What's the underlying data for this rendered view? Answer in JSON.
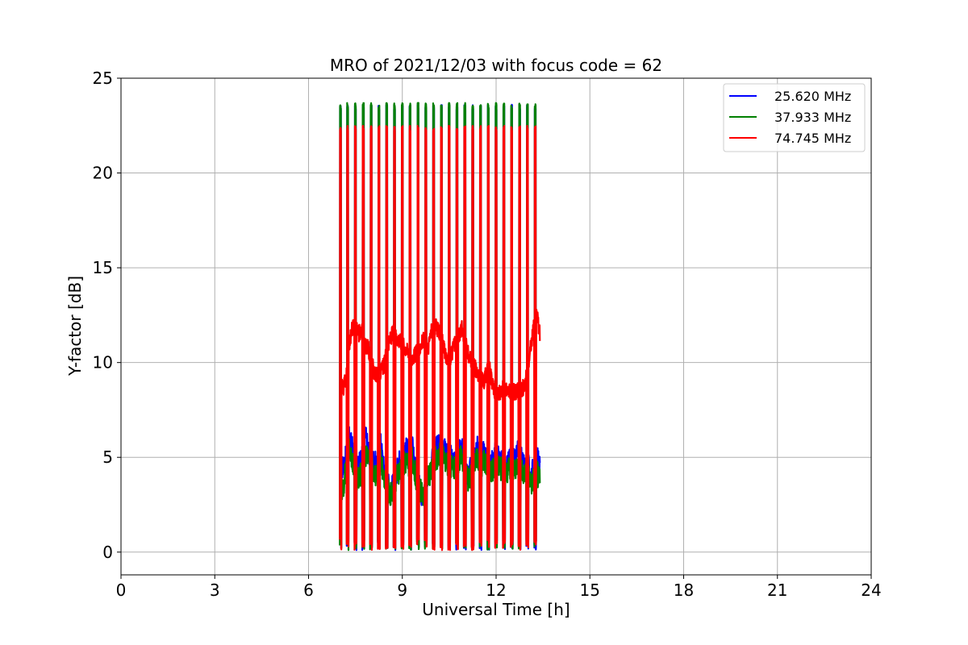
{
  "chart_data": {
    "type": "line",
    "title": "MRO of 2021/12/03 with focus code = 62",
    "xlabel": "Universal Time [h]",
    "ylabel": "Y-factor [dB]",
    "xlim": [
      0,
      24
    ],
    "ylim": [
      -1.2,
      25
    ],
    "xticks": [
      0,
      3,
      6,
      9,
      12,
      15,
      18,
      21,
      24
    ],
    "yticks": [
      0,
      5,
      10,
      15,
      20,
      25
    ],
    "grid": true,
    "legend_position": "top-right",
    "spike_times": [
      7.02,
      7.25,
      7.5,
      7.75,
      8.0,
      8.25,
      8.5,
      8.75,
      9.0,
      9.25,
      9.5,
      9.75,
      10.0,
      10.25,
      10.5,
      10.75,
      11.0,
      11.25,
      11.5,
      11.75,
      12.0,
      12.25,
      12.5,
      12.75,
      13.0,
      13.25
    ],
    "series": [
      {
        "name": "25.620 MHz",
        "color": "#0000ff",
        "peak": 23.6,
        "x": [
          7.0,
          7.1,
          7.2,
          7.3,
          7.4,
          7.5,
          7.6,
          7.7,
          7.8,
          7.9,
          8.0,
          8.1,
          8.2,
          8.3,
          8.4,
          8.5,
          8.6,
          8.7,
          8.8,
          8.9,
          9.0,
          9.1,
          9.2,
          9.3,
          9.4,
          9.5,
          9.6,
          9.7,
          9.8,
          9.9,
          10.0,
          10.1,
          10.2,
          10.3,
          10.4,
          10.5,
          10.6,
          10.7,
          10.8,
          10.9,
          11.0,
          11.1,
          11.2,
          11.3,
          11.4,
          11.5,
          11.6,
          11.7,
          11.8,
          11.9,
          12.0,
          12.1,
          12.2,
          12.3,
          12.4,
          12.5,
          12.6,
          12.7,
          12.8,
          12.9,
          13.0,
          13.1,
          13.2,
          13.3,
          13.4
        ],
        "y": [
          4.8,
          4.5,
          5.0,
          6.0,
          5.5,
          4.2,
          4.5,
          5.0,
          6.3,
          5.5,
          5.0,
          4.8,
          4.5,
          5.8,
          4.5,
          4.0,
          3.2,
          3.5,
          4.0,
          4.8,
          5.0,
          5.5,
          5.2,
          5.8,
          4.5,
          3.8,
          3.0,
          2.8,
          4.0,
          4.5,
          5.2,
          5.5,
          5.8,
          5.6,
          5.2,
          5.0,
          5.0,
          4.8,
          5.2,
          5.5,
          4.5,
          4.0,
          4.5,
          5.0,
          5.5,
          4.8,
          5.2,
          4.8,
          4.6,
          4.8,
          5.5,
          5.0,
          4.8,
          4.5,
          4.8,
          5.0,
          4.8,
          5.3,
          5.0,
          4.5,
          4.8,
          4.0,
          4.5,
          5.0,
          4.5
        ]
      },
      {
        "name": "37.933 MHz",
        "color": "#008000",
        "peak": 23.7,
        "x": [
          7.0,
          7.1,
          7.2,
          7.3,
          7.4,
          7.5,
          7.6,
          7.7,
          7.8,
          7.9,
          8.0,
          8.1,
          8.2,
          8.3,
          8.4,
          8.5,
          8.6,
          8.7,
          8.8,
          8.9,
          9.0,
          9.1,
          9.2,
          9.3,
          9.4,
          9.5,
          9.6,
          9.7,
          9.8,
          9.9,
          10.0,
          10.1,
          10.2,
          10.3,
          10.4,
          10.5,
          10.6,
          10.7,
          10.8,
          10.9,
          11.0,
          11.1,
          11.2,
          11.3,
          11.4,
          11.5,
          11.6,
          11.7,
          11.8,
          11.9,
          12.0,
          12.1,
          12.2,
          12.3,
          12.4,
          12.5,
          12.6,
          12.7,
          12.8,
          12.9,
          13.0,
          13.1,
          13.2,
          13.3,
          13.4
        ],
        "y": [
          3.5,
          3.2,
          4.5,
          5.5,
          5.0,
          4.0,
          3.8,
          4.2,
          5.0,
          5.2,
          4.5,
          4.2,
          4.0,
          5.0,
          4.2,
          3.5,
          3.0,
          3.3,
          3.8,
          4.2,
          4.5,
          4.8,
          4.6,
          5.0,
          4.2,
          3.5,
          3.2,
          3.0,
          3.8,
          4.2,
          4.8,
          5.0,
          5.2,
          5.0,
          4.8,
          4.6,
          4.5,
          4.5,
          4.8,
          5.2,
          4.2,
          3.8,
          4.0,
          4.5,
          5.0,
          4.5,
          4.8,
          4.4,
          4.2,
          4.3,
          4.8,
          4.5,
          4.3,
          4.0,
          4.3,
          4.5,
          4.3,
          4.6,
          4.5,
          4.0,
          4.2,
          3.6,
          3.8,
          4.2,
          3.8
        ]
      },
      {
        "name": "74.745 MHz",
        "color": "#ff0000",
        "peak": 22.5,
        "x": [
          7.0,
          7.1,
          7.2,
          7.3,
          7.4,
          7.5,
          7.6,
          7.7,
          7.8,
          7.9,
          8.0,
          8.1,
          8.2,
          8.3,
          8.4,
          8.5,
          8.6,
          8.7,
          8.8,
          8.9,
          9.0,
          9.1,
          9.2,
          9.3,
          9.4,
          9.5,
          9.6,
          9.7,
          9.8,
          9.9,
          10.0,
          10.1,
          10.2,
          10.3,
          10.4,
          10.5,
          10.6,
          10.7,
          10.8,
          10.9,
          11.0,
          11.1,
          11.2,
          11.3,
          11.4,
          11.5,
          11.6,
          11.7,
          11.8,
          11.9,
          12.0,
          12.1,
          12.2,
          12.3,
          12.4,
          12.5,
          12.6,
          12.7,
          12.8,
          12.9,
          13.0,
          13.1,
          13.2,
          13.3,
          13.4
        ],
        "y": [
          9.0,
          8.6,
          9.2,
          11.0,
          11.8,
          12.0,
          11.5,
          11.8,
          11.0,
          10.8,
          10.2,
          9.5,
          9.3,
          9.5,
          9.8,
          10.5,
          11.2,
          11.6,
          11.4,
          11.2,
          11.0,
          10.8,
          10.5,
          10.3,
          10.4,
          10.6,
          11.0,
          11.2,
          10.5,
          11.5,
          12.0,
          11.8,
          11.5,
          11.0,
          10.2,
          10.0,
          10.6,
          11.2,
          11.5,
          11.8,
          11.2,
          10.5,
          10.0,
          9.8,
          9.5,
          9.2,
          9.0,
          9.5,
          9.6,
          8.7,
          8.3,
          8.4,
          8.6,
          8.6,
          8.5,
          8.6,
          8.4,
          8.5,
          8.6,
          8.7,
          9.5,
          10.8,
          11.8,
          12.5,
          11.5
        ]
      }
    ]
  }
}
